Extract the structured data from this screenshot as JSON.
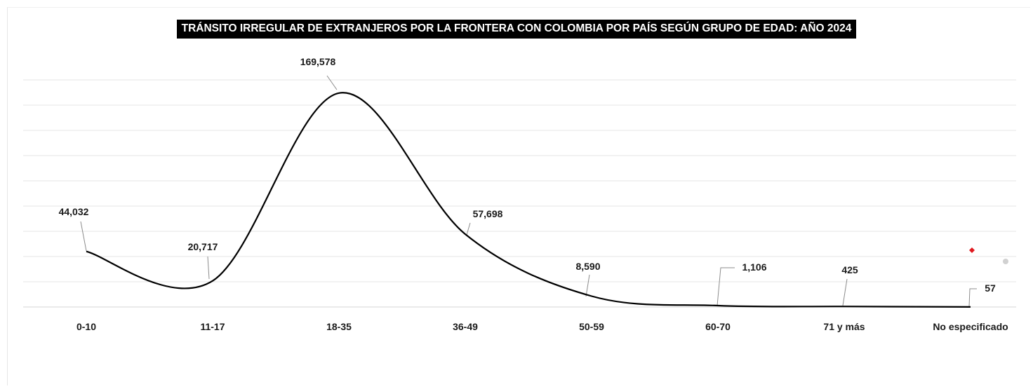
{
  "chart_data": {
    "type": "line",
    "title": "TRÁNSITO IRREGULAR DE EXTRANJEROS POR LA FRONTERA CON COLOMBIA POR PAÍS SEGÚN GRUPO DE EDAD: AÑO 2024",
    "categories": [
      "0-10",
      "11-17",
      "18-35",
      "36-49",
      "50-59",
      "60-70",
      "71 y más",
      "No especificado"
    ],
    "series": [
      {
        "values": [
          44032,
          20717,
          169578,
          57698,
          8590,
          1106,
          425,
          57
        ],
        "data_labels": [
          "44,032",
          "20,717",
          "169,578",
          "57,698",
          "8,590",
          "1,106",
          "425",
          "57"
        ]
      }
    ],
    "smoothed": true,
    "ylim": [
      0,
      180000
    ],
    "grid": "horizontal",
    "legend": "none",
    "line_color": "#000000",
    "grid_color": "#e4e4e4"
  },
  "decorations": {
    "marker_colors": [
      "#e0191f",
      "#bdbdbd"
    ]
  }
}
